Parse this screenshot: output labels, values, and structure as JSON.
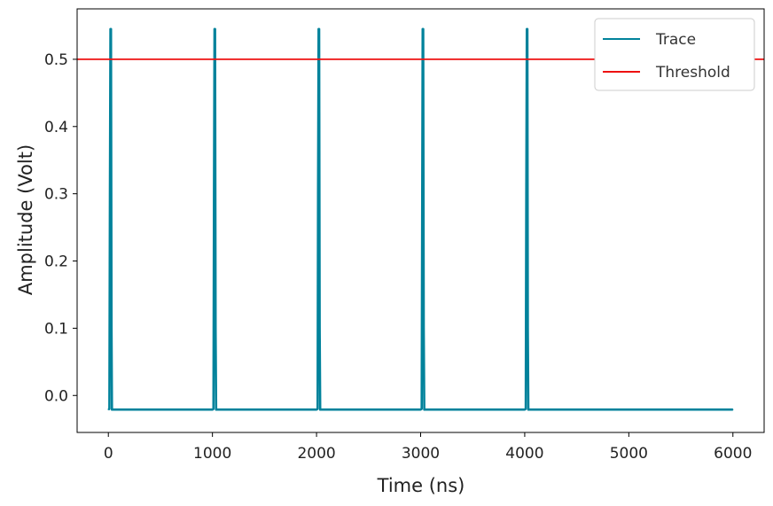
{
  "chart_data": {
    "type": "line",
    "xlabel": "Time (ns)",
    "ylabel": "Amplitude (Volt)",
    "xlim": [
      -300,
      6300
    ],
    "ylim": [
      -0.055,
      0.575
    ],
    "xticks": [
      0,
      1000,
      2000,
      3000,
      4000,
      5000,
      6000
    ],
    "xtick_labels": [
      "0",
      "1000",
      "2000",
      "3000",
      "4000",
      "5000",
      "6000"
    ],
    "yticks": [
      0.0,
      0.1,
      0.2,
      0.3,
      0.4,
      0.5
    ],
    "ytick_labels": [
      "0.0",
      "0.1",
      "0.2",
      "0.3",
      "0.4",
      "0.5"
    ],
    "grid": false,
    "legend_position": "top-right",
    "series": [
      {
        "name": "Trace",
        "color": "#00829b",
        "x": [
          0,
          10,
          15,
          20,
          25,
          30,
          35,
          500,
          1000,
          1010,
          1015,
          1020,
          1025,
          1030,
          1035,
          1500,
          2000,
          2010,
          2015,
          2020,
          2025,
          2030,
          2035,
          2500,
          3000,
          3010,
          3015,
          3020,
          3025,
          3030,
          3035,
          3500,
          4000,
          4010,
          4015,
          4020,
          4025,
          4030,
          4035,
          4500,
          5000,
          5500,
          6000
        ],
        "y": [
          -0.021,
          -0.02,
          0.3,
          0.545,
          0.545,
          0.1,
          -0.021,
          -0.021,
          -0.021,
          -0.02,
          0.3,
          0.545,
          0.545,
          0.1,
          -0.021,
          -0.021,
          -0.021,
          -0.02,
          0.3,
          0.545,
          0.545,
          0.1,
          -0.021,
          -0.021,
          -0.021,
          -0.02,
          0.3,
          0.545,
          0.545,
          0.1,
          -0.021,
          -0.021,
          -0.021,
          -0.02,
          0.3,
          0.545,
          0.545,
          0.1,
          -0.021,
          -0.021,
          -0.021,
          -0.021,
          -0.021
        ]
      },
      {
        "name": "Threshold",
        "color": "#ee1111",
        "type": "hline",
        "y": 0.5
      }
    ]
  }
}
